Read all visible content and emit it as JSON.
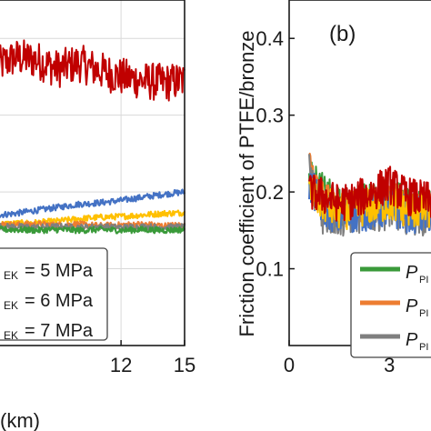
{
  "chart_data": [
    {
      "type": "line",
      "panel": "left (cropped)",
      "title": "",
      "xlabel": "(km)",
      "ylabel": "",
      "xlim": [
        6.2,
        15
      ],
      "ylim": [
        0,
        0.45
      ],
      "xticks": [
        12,
        15
      ],
      "xtick_labels": [
        "12",
        "15"
      ],
      "grid": true,
      "legend_placement": "lower-left",
      "legend": [
        {
          "suffix": "EK",
          "label": "= 5 MPa"
        },
        {
          "suffix": "EK",
          "label": "= 6 MPa"
        },
        {
          "suffix": "EK",
          "label": "= 7 MPa"
        }
      ],
      "series": [
        {
          "color": "#c00000",
          "x": [
            6.2,
            7,
            8,
            9,
            10,
            11,
            12,
            13,
            14,
            15
          ],
          "y": [
            0.365,
            0.375,
            0.372,
            0.36,
            0.368,
            0.358,
            0.35,
            0.345,
            0.342,
            0.345
          ]
        },
        {
          "color": "#4472c4",
          "x": [
            6.2,
            7,
            8,
            9,
            10,
            11,
            12,
            13,
            14,
            15
          ],
          "y": [
            0.17,
            0.172,
            0.176,
            0.18,
            0.184,
            0.186,
            0.189,
            0.193,
            0.197,
            0.2
          ]
        },
        {
          "color": "#ffc000",
          "x": [
            6.2,
            7,
            8,
            9,
            10,
            11,
            12,
            13,
            14,
            15
          ],
          "y": [
            0.158,
            0.159,
            0.16,
            0.162,
            0.165,
            0.167,
            0.168,
            0.17,
            0.172,
            0.173
          ]
        },
        {
          "color": "#ed7d31",
          "x": [
            6.2,
            7,
            8,
            9,
            10,
            11,
            12,
            13,
            14,
            15
          ],
          "y": [
            0.158,
            0.157,
            0.158,
            0.157,
            0.158,
            0.156,
            0.157,
            0.158,
            0.156,
            0.157
          ]
        },
        {
          "color": "#7f7f7f",
          "x": [
            6.2,
            7,
            8,
            9,
            10,
            11,
            12,
            13,
            14,
            15
          ],
          "y": [
            0.155,
            0.155,
            0.154,
            0.155,
            0.154,
            0.155,
            0.154,
            0.155,
            0.154,
            0.155
          ]
        },
        {
          "color": "#3a9a3a",
          "x": [
            6.2,
            7,
            8,
            9,
            10,
            11,
            12,
            13,
            14,
            15
          ],
          "y": [
            0.151,
            0.151,
            0.15,
            0.151,
            0.15,
            0.151,
            0.15,
            0.151,
            0.15,
            0.151
          ]
        }
      ]
    },
    {
      "type": "line",
      "panel": "right (cropped)",
      "panel_label": "(b)",
      "title": "",
      "xlabel": "",
      "ylabel": "Friction coefficient of PTFE/bronze",
      "xlim": [
        0,
        4.3
      ],
      "ylim": [
        0,
        0.45
      ],
      "xticks": [
        0,
        3
      ],
      "xtick_labels": [
        "0",
        "3"
      ],
      "yticks": [
        0.1,
        0.2,
        0.3,
        0.4
      ],
      "ytick_labels": [
        "0.1",
        "0.2",
        "0.3",
        "0.4"
      ],
      "legend_placement": "lower-right",
      "legend": [
        {
          "color": "#3a9a3a",
          "symbol": "P",
          "sub": "PI"
        },
        {
          "color": "#ed7d31",
          "symbol": "P",
          "sub": "PI"
        },
        {
          "color": "#7f7f7f",
          "symbol": "P",
          "sub": "PI"
        }
      ],
      "series": [
        {
          "color": "#3a9a3a",
          "x": [
            0.6,
            1,
            1.5,
            2,
            2.5,
            3,
            3.5,
            4,
            4.3
          ],
          "y": [
            0.22,
            0.2,
            0.18,
            0.185,
            0.19,
            0.195,
            0.185,
            0.18,
            0.182
          ]
        },
        {
          "color": "#ed7d31",
          "x": [
            0.6,
            1,
            1.5,
            2,
            2.5,
            3,
            3.5,
            4,
            4.3
          ],
          "y": [
            0.25,
            0.19,
            0.175,
            0.18,
            0.185,
            0.19,
            0.18,
            0.178,
            0.18
          ]
        },
        {
          "color": "#7f7f7f",
          "x": [
            0.6,
            1,
            1.5,
            2,
            2.5,
            3,
            3.5,
            4,
            4.3
          ],
          "y": [
            0.23,
            0.17,
            0.165,
            0.17,
            0.172,
            0.176,
            0.17,
            0.168,
            0.17
          ]
        },
        {
          "color": "#4472c4",
          "x": [
            0.6,
            1,
            1.5,
            2,
            2.5,
            3,
            3.5,
            4,
            4.3
          ],
          "y": [
            0.21,
            0.18,
            0.168,
            0.172,
            0.175,
            0.178,
            0.172,
            0.17,
            0.172
          ]
        },
        {
          "color": "#ffc000",
          "x": [
            0.6,
            1,
            1.5,
            2,
            2.5,
            3,
            3.5,
            4,
            4.3
          ],
          "y": [
            0.2,
            0.185,
            0.175,
            0.178,
            0.182,
            0.186,
            0.178,
            0.176,
            0.178
          ]
        },
        {
          "color": "#c00000",
          "x": [
            0.6,
            1,
            1.5,
            2,
            2.5,
            3,
            3.5,
            4,
            4.3
          ],
          "y": [
            0.2,
            0.195,
            0.185,
            0.19,
            0.2,
            0.21,
            0.195,
            0.19,
            0.188
          ]
        }
      ]
    }
  ]
}
